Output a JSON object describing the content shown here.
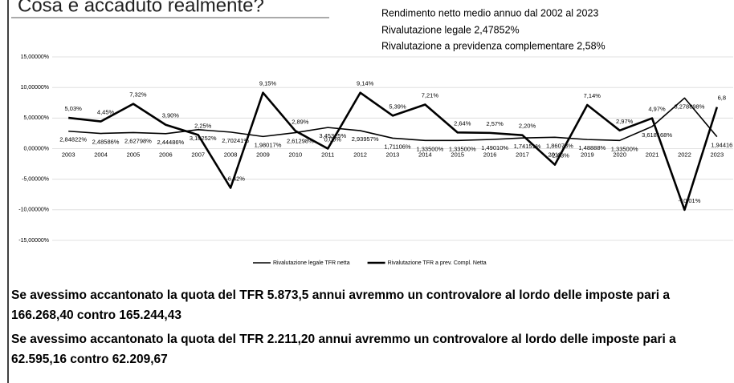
{
  "header": {
    "title": "Cosa è accaduto realmente?"
  },
  "notes": [
    "Rendimento netto medio annuo dal 2002 al 2023",
    "Rivalutazione legale 2,47852%",
    "Rivalutazione a previdenza complementare 2,58%"
  ],
  "paragraphs": [
    "Se avessimo accantonato la quota del TFR 5.873,5 annui avremmo un controvalore al lordo delle imposte pari a 166.268,40 contro 165.244,43",
    "Se avessimo accantonato la quota del TFR 2.211,20 annui avremmo un controvalore al lordo delle imposte pari a 62.595,16 contro 62.209,67"
  ],
  "chart_data": {
    "type": "line",
    "categories": [
      "2003",
      "2004",
      "2005",
      "2006",
      "2007",
      "2008",
      "2009",
      "2010",
      "2011",
      "2012",
      "2013",
      "2014",
      "2015",
      "2016",
      "2017",
      "2018",
      "2019",
      "2020",
      "2021",
      "2022",
      "2023"
    ],
    "series": [
      {
        "name": "Rivalutazione legale TFR netta",
        "color": "#000000",
        "line_width": 1.6,
        "label_side": "below",
        "values": [
          2.84822,
          2.48586,
          2.62798,
          2.44486,
          3.10252,
          2.70241,
          1.98017,
          2.61298,
          3.45325,
          2.93957,
          1.71106,
          1.335,
          1.335,
          1.4901,
          1.74151,
          1.86073,
          1.48888,
          1.335,
          3.618168,
          8.278898,
          1.94416
        ],
        "value_labels": [
          "2,84822%",
          "2,48586%",
          "2,62798%",
          "2,44486%",
          "3,10252%",
          "2,70241%",
          "1,98017%",
          "2,61298%",
          "3,45325%",
          "2,93957%",
          "1,71106%",
          "1,33500%",
          "1,33500%",
          "1,49010%",
          "1,74151%",
          "1,86073%",
          "1,48888%",
          "1,33500%",
          "3,618168%",
          "8,278898%",
          "1,94416"
        ]
      },
      {
        "name": "Rivalutazione TFR a prev. Compl. Netta",
        "color": "#000000",
        "line_width": 2.6,
        "label_side": "above",
        "values": [
          5.03,
          4.45,
          7.32,
          3.9,
          2.25,
          -6.42,
          9.15,
          2.89,
          0,
          9.14,
          5.39,
          7.21,
          2.64,
          2.57,
          2.2,
          -2.63,
          7.14,
          2.97,
          4.97,
          -10.01,
          6.8
        ],
        "value_labels": [
          "5,03%",
          "4,45%",
          "7,32%",
          "3,90%",
          "2,25%",
          "-6,42%",
          "9,15%",
          "2,89%",
          "0,00%",
          "9,14%",
          "5,39%",
          "7,21%",
          "2,64%",
          "2,57%",
          "2,20%",
          "-2,63%",
          "7,14%",
          "2,97%",
          "4,97%",
          "-10,01%",
          "6,8"
        ]
      }
    ],
    "ylim": [
      -15,
      15
    ],
    "yticks": [
      {
        "value": -15,
        "label": "-15,00000%"
      },
      {
        "value": -10,
        "label": "-10,00000%"
      },
      {
        "value": -5,
        "label": "-5,00000%"
      },
      {
        "value": 0,
        "label": "0,00000%"
      },
      {
        "value": 5,
        "label": "5,00000%"
      },
      {
        "value": 10,
        "label": "10,00000%"
      },
      {
        "value": 15,
        "label": "15,00000%"
      }
    ],
    "grid": true,
    "legend": "bottom"
  }
}
